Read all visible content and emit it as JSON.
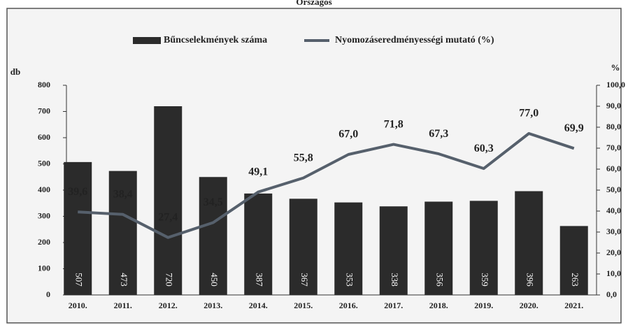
{
  "chart_data": {
    "type": "bar",
    "title": "Országos",
    "ylabel": "db",
    "y2label": "%",
    "categories": [
      "2010.",
      "2011.",
      "2012.",
      "2013.",
      "2014.",
      "2015.",
      "2016.",
      "2017.",
      "2018.",
      "2019.",
      "2020.",
      "2021."
    ],
    "series": [
      {
        "name": "Bűncselekmények száma",
        "type": "bar",
        "color": "#2b2b2b",
        "values": [
          507,
          473,
          720,
          450,
          387,
          367,
          353,
          338,
          356,
          359,
          396,
          263
        ]
      },
      {
        "name": "Nyomozáseredményességi mutató (%)",
        "type": "line",
        "axis": "y2",
        "color": "#56606c",
        "values": [
          39.6,
          38.4,
          27.4,
          34.5,
          49.1,
          55.8,
          67.0,
          71.8,
          67.3,
          60.3,
          77.0,
          69.9
        ],
        "value_labels": [
          "39,6",
          "38,4",
          "27,4",
          "34,5",
          "49,1",
          "55,8",
          "67,0",
          "71,8",
          "67,3",
          "60,3",
          "77,0",
          "69,9"
        ]
      }
    ],
    "ylim": [
      0,
      800
    ],
    "yticks": [
      0,
      100,
      200,
      300,
      400,
      500,
      600,
      700,
      800
    ],
    "y2lim": [
      0,
      100
    ],
    "y2ticks": [
      {
        "value": 0,
        "label": "0,0"
      },
      {
        "value": 10,
        "label": "10,0"
      },
      {
        "value": 20,
        "label": "20,0"
      },
      {
        "value": 30,
        "label": "30,0"
      },
      {
        "value": 40,
        "label": "40,0"
      },
      {
        "value": 50,
        "label": "50,0"
      },
      {
        "value": 60,
        "label": "60,0"
      },
      {
        "value": 70,
        "label": "70,0"
      },
      {
        "value": 80,
        "label": "80,0"
      },
      {
        "value": 90,
        "label": "90,0"
      },
      {
        "value": 100,
        "label": "100,0"
      }
    ],
    "legend": "top"
  }
}
